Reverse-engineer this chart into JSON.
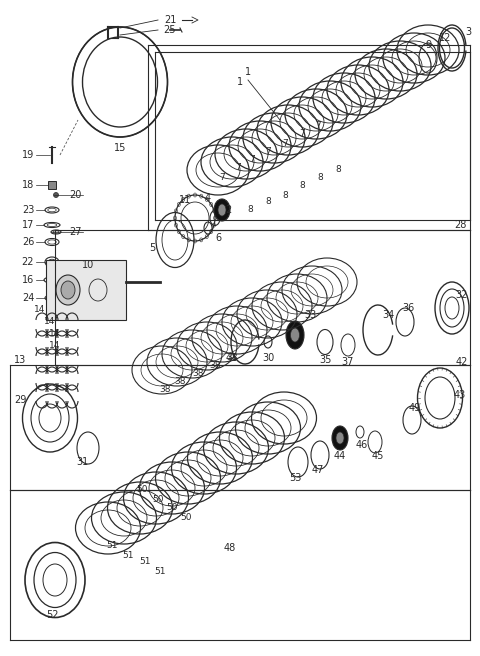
{
  "bg_color": "#ffffff",
  "line_color": "#2a2a2a",
  "fig_width": 4.8,
  "fig_height": 6.56,
  "dpi": 100
}
